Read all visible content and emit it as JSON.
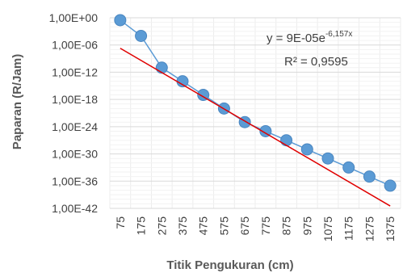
{
  "chart_data": {
    "type": "scatter",
    "title": "",
    "xlabel": "Titik Pengukuran (cm)",
    "ylabel": "Paparan (R/Jam)",
    "y_scale": "log",
    "ylim_exponent": [
      -42,
      0
    ],
    "y_ticks": [
      "1,00E+00",
      "1,00E-06",
      "1,00E-12",
      "1,00E-18",
      "1,00E-24",
      "1,00E-30",
      "1,00E-36",
      "1,00E-42"
    ],
    "x_ticks": [
      "75",
      "175",
      "275",
      "375",
      "475",
      "575",
      "675",
      "775",
      "875",
      "975",
      "1075",
      "1175",
      "1275",
      "1375"
    ],
    "grid": true,
    "series": [
      {
        "color": "#5B9BD5",
        "x": [
          75,
          175,
          275,
          375,
          475,
          575,
          675,
          775,
          875,
          975,
          1075,
          1175,
          1275,
          1375
        ],
        "y": [
          0.3,
          0.0001,
          1e-11,
          1e-14,
          1e-17,
          1e-20,
          1e-23,
          1e-25,
          1e-27,
          1e-29,
          1e-31,
          1e-33,
          1e-35,
          1e-37
        ]
      }
    ],
    "trendline": {
      "type": "exponential",
      "color": "#E00000",
      "a": 9e-05,
      "b": -6.157,
      "equation_prefix": "y = 9E-05e",
      "equation_exponent": "-6,157x",
      "r_squared": "R² = 0,9595"
    }
  }
}
